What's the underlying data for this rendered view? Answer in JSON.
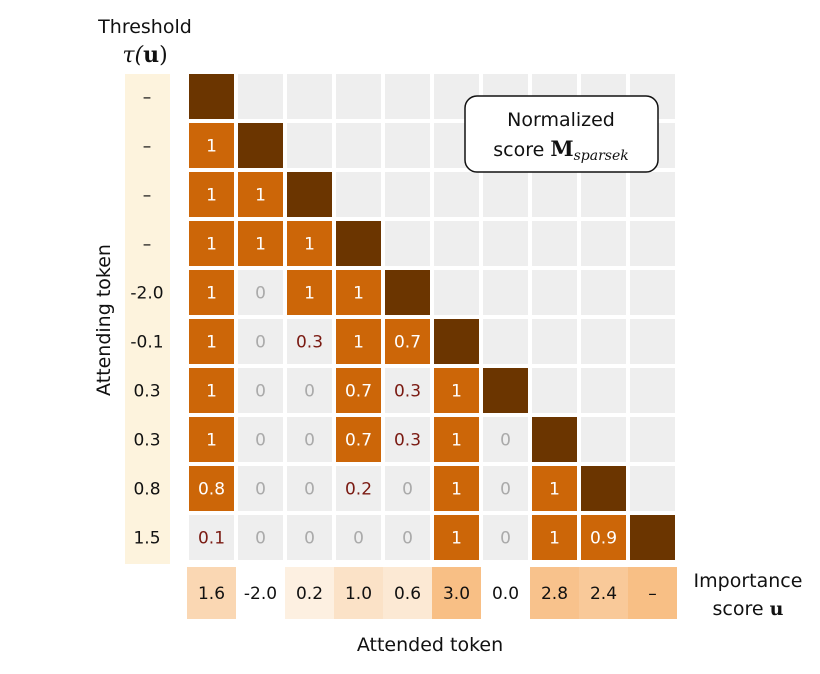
{
  "labels": {
    "threshold_line1": "Threshold",
    "threshold_tau": "τ(",
    "threshold_u": "u",
    "threshold_close": ")",
    "y_axis": "Attending token",
    "x_axis": "Attended token",
    "importance_line1": "Importance",
    "importance_line2_text": "score ",
    "importance_line2_bold": "u",
    "legend_line1": "Normalized",
    "legend_line2_text": "score ",
    "legend_M": "M",
    "legend_sub": "sparsek"
  },
  "thresholds": [
    "–",
    "–",
    "–",
    "–",
    "-2.0",
    "-0.1",
    "0.3",
    "0.3",
    "0.8",
    "1.5"
  ],
  "importance_scores": [
    "1.6",
    "-2.0",
    "0.2",
    "1.0",
    "0.6",
    "3.0",
    "0.0",
    "2.8",
    "2.4",
    "–"
  ],
  "importance_values": [
    1.6,
    -2.0,
    0.2,
    1.0,
    0.6,
    3.0,
    0.0,
    2.8,
    2.4,
    null
  ],
  "matrix": [
    [
      null
    ],
    [
      "1",
      null
    ],
    [
      "1",
      "1",
      null
    ],
    [
      "1",
      "1",
      "1",
      null
    ],
    [
      "1",
      "0",
      "1",
      "1",
      null
    ],
    [
      "1",
      "0",
      "0.3",
      "1",
      "0.7",
      null
    ],
    [
      "1",
      "0",
      "0",
      "0.7",
      "0.3",
      "1",
      null
    ],
    [
      "1",
      "0",
      "0",
      "0.7",
      "0.3",
      "1",
      "0",
      null
    ],
    [
      "0.8",
      "0",
      "0",
      "0.2",
      "0",
      "1",
      "0",
      "1",
      null
    ],
    [
      "0.1",
      "0",
      "0",
      "0",
      "0",
      "1",
      "0",
      "1",
      "0.9",
      null
    ]
  ],
  "colors": {
    "full": "#cc6608",
    "partial_text": "#7a1a12",
    "zero_text": "#aaaaaa",
    "diagonal": "#6b3500",
    "empty": "#eeeeee",
    "threshold_bg": "#fdf3dd",
    "importance_low": "#fdf3e8",
    "importance_high": "#f8bf85"
  }
}
